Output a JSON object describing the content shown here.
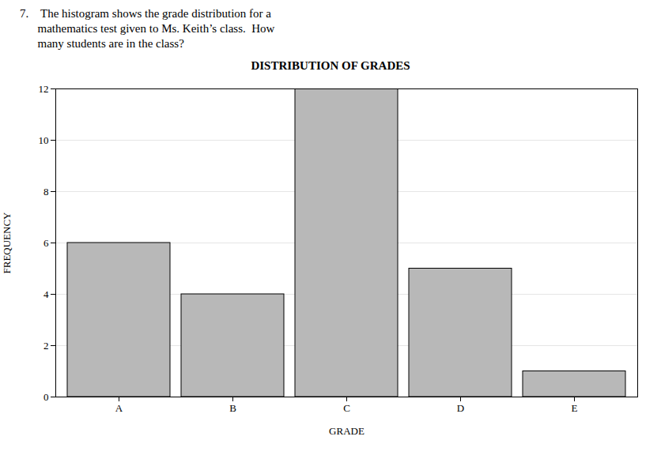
{
  "chart_data": {
    "type": "bar",
    "subtitle": "7.    The histogram shows the grade distribution for a\n      mathematics test given to Ms. Keith’s class.  How\n      many students are in the class?",
    "title": "DISTRIBUTION OF GRADES",
    "xlabel": "GRADE",
    "ylabel": "FREQUENCY",
    "categories": [
      "A",
      "B",
      "C",
      "D",
      "E"
    ],
    "values": [
      6,
      4,
      12,
      5,
      1
    ],
    "color": "#b8b8b8",
    "ylim": [
      0,
      12
    ],
    "yticks": [
      0,
      2,
      4,
      6,
      8,
      10,
      12
    ],
    "grid": true
  }
}
